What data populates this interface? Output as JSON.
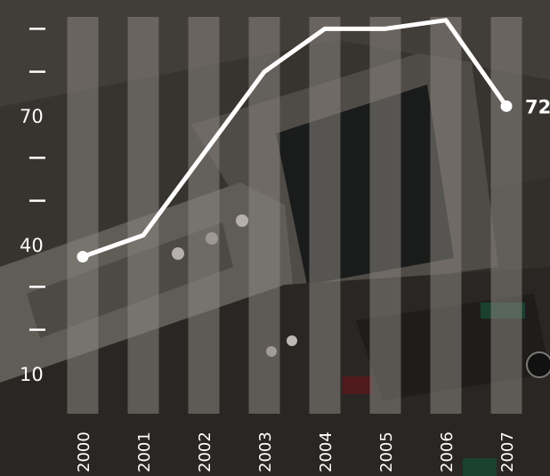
{
  "chart_data": {
    "type": "line",
    "categories": [
      "2000",
      "2001",
      "2002",
      "2003",
      "2004",
      "2005",
      "2006",
      "2007"
    ],
    "series": [
      {
        "values": [
          37,
          42,
          61,
          80,
          90,
          90,
          92,
          72
        ]
      }
    ],
    "y_tick_labels": [
      "10",
      "",
      "",
      "40",
      "",
      "",
      "70",
      "",
      ""
    ],
    "y_ticks": [
      10,
      20,
      30,
      40,
      50,
      60,
      70,
      80,
      90
    ],
    "ylim": [
      10,
      100
    ],
    "end_label": "72",
    "grid": false,
    "colors": {
      "line": "#ffffff",
      "column_band": "#8a8580",
      "text": "#ffffff"
    }
  }
}
